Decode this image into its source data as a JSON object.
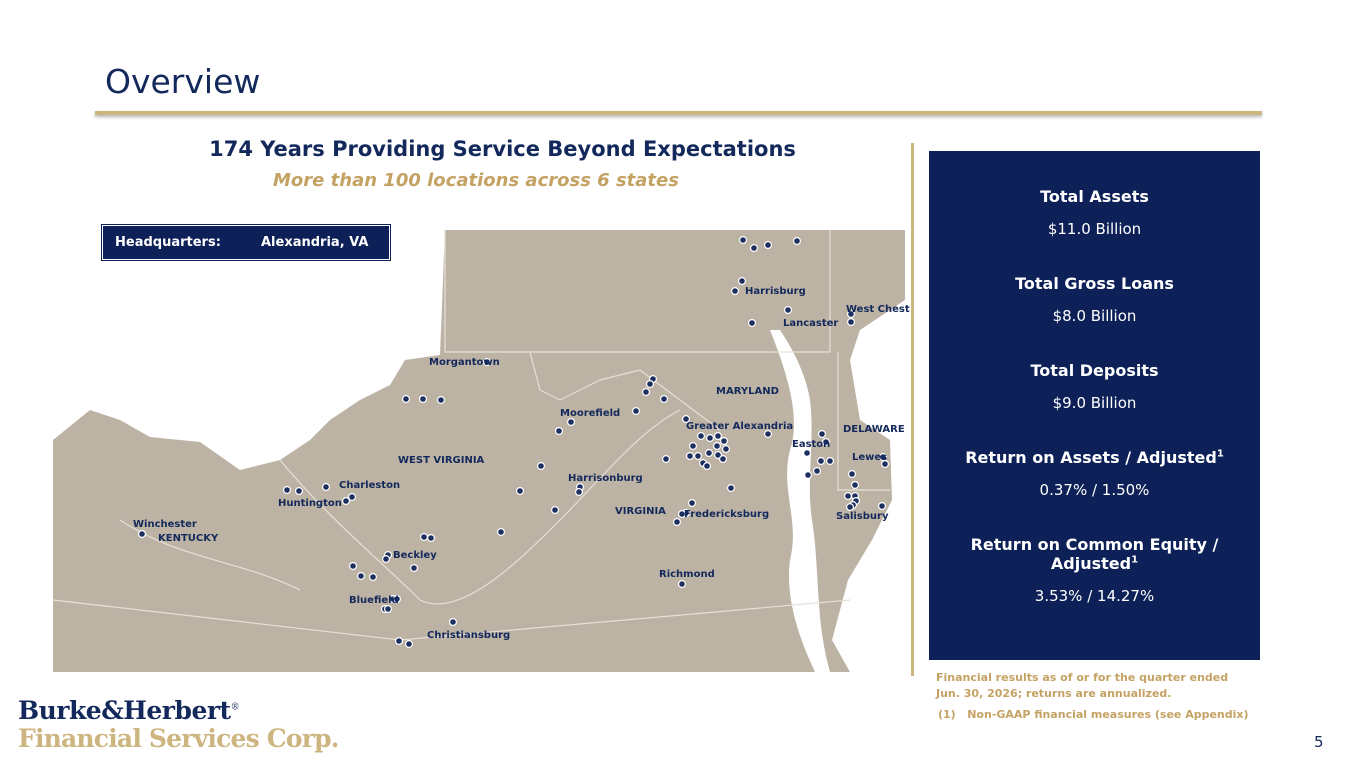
{
  "header": {
    "title": "Overview"
  },
  "intro": {
    "heading": "174 Years Providing Service Beyond Expectations",
    "subheading": "More than 100 locations across 6 states"
  },
  "headquarters": {
    "label": "Headquarters:",
    "value": "Alexandria, VA"
  },
  "map": {
    "labels": [
      "Harrisburg",
      "Lancaster",
      "West Chester",
      "Morgantown",
      "MARYLAND",
      "Moorefield",
      "Greater Alexandria",
      "DELAWARE",
      "Easton",
      "Lewes",
      "WEST VIRGINIA",
      "Harrisonburg",
      "Charleston",
      "Huntington",
      "VIRGINIA",
      "Fredericksburg",
      "Salisbury",
      "Winchester",
      "KENTUCKY",
      "Beckley",
      "Richmond",
      "Bluefield",
      "Christiansburg"
    ]
  },
  "metrics": [
    {
      "label": "Total Assets",
      "value": "$11.0 Billion"
    },
    {
      "label": "Total Gross Loans",
      "value": "$8.0 Billion"
    },
    {
      "label": "Total Deposits",
      "value": "$9.0 Billion"
    },
    {
      "label": "Return on Assets / Adjusted",
      "footnote_mark": "1",
      "value": "0.37% / 1.50%"
    },
    {
      "label": "Return on Common Equity / Adjusted",
      "footnote_mark": "1",
      "value": "3.53% / 14.27%"
    }
  ],
  "notes": {
    "basis": "Financial results as of or for the quarter ended Jun. 30, 2026; returns are annualized.",
    "footnote_number": "(1)",
    "footnote_text": "Non-GAAP financial measures (see Appendix)"
  },
  "logo": {
    "line1": "Burke&Herbert",
    "registered": "®",
    "line2": "Financial Services Corp."
  },
  "page_number": "5"
}
